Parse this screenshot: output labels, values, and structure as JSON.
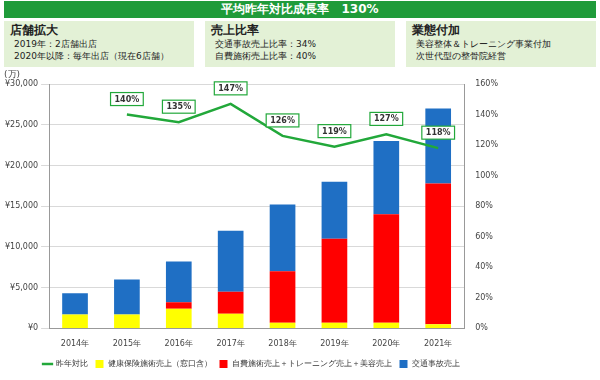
{
  "header": {
    "title": "平均昨年対比成長率　130%"
  },
  "panels": [
    {
      "title": "店舗拡大",
      "lines": [
        "2019年：2店舗出店",
        "2020年以降：毎年出店（現在6店舗）"
      ]
    },
    {
      "title": "売上比率",
      "lines": [
        "交通事故売上比率：34%",
        "自費施術売上比率：40%"
      ]
    },
    {
      "title": "業態付加",
      "lines": [
        "美容整体＆トレーニング事業付加",
        "次世代型の整骨院経営"
      ]
    }
  ],
  "chart_data": {
    "type": "bar",
    "stacked": true,
    "grid": true,
    "legend": "bottom",
    "y_label": "(万)",
    "categories": [
      "2014年",
      "2015年",
      "2016年",
      "2017年",
      "2018年",
      "2019年",
      "2020年",
      "2021年"
    ],
    "ylim": [
      0,
      30000
    ],
    "yticks": [
      {
        "value": 0,
        "label": "¥0"
      },
      {
        "value": 5000,
        "label": "¥5,000"
      },
      {
        "value": 10000,
        "label": "¥10,000"
      },
      {
        "value": 15000,
        "label": "¥15,000"
      },
      {
        "value": 20000,
        "label": "¥20,000"
      },
      {
        "value": 25000,
        "label": "¥25,000"
      },
      {
        "value": 30000,
        "label": "¥30,000"
      }
    ],
    "y2lim": [
      0,
      160
    ],
    "y2ticks": [
      {
        "value": 0,
        "label": "0%"
      },
      {
        "value": 20,
        "label": "20%"
      },
      {
        "value": 40,
        "label": "40%"
      },
      {
        "value": 60,
        "label": "60%"
      },
      {
        "value": 80,
        "label": "80%"
      },
      {
        "value": 100,
        "label": "100%"
      },
      {
        "value": 120,
        "label": "120%"
      },
      {
        "value": 140,
        "label": "140%"
      },
      {
        "value": 160,
        "label": "160%"
      }
    ],
    "series": [
      {
        "name": "健康保険施術売上（窓口含）",
        "color": "#ffff00",
        "values": [
          1700,
          1700,
          2400,
          1800,
          700,
          700,
          700,
          500
        ]
      },
      {
        "name": "自費施術売上＋トレーニング売上＋美容売上",
        "color": "#ff0000",
        "values": [
          0,
          0,
          800,
          2700,
          6300,
          10300,
          13300,
          17300
        ]
      },
      {
        "name": "交通事故売上",
        "color": "#1f6fc4",
        "values": [
          2600,
          4300,
          5000,
          7500,
          8200,
          7000,
          9000,
          9200
        ]
      },
      {
        "name": "昨年対比",
        "type": "line",
        "axis": "y2",
        "color": "#22a83a",
        "data_labels": true,
        "values": [
          null,
          140,
          135,
          147,
          126,
          119,
          127,
          118
        ],
        "value_labels": [
          null,
          "140%",
          "135%",
          "147%",
          "126%",
          "119%",
          "127%",
          "118%"
        ]
      }
    ]
  }
}
